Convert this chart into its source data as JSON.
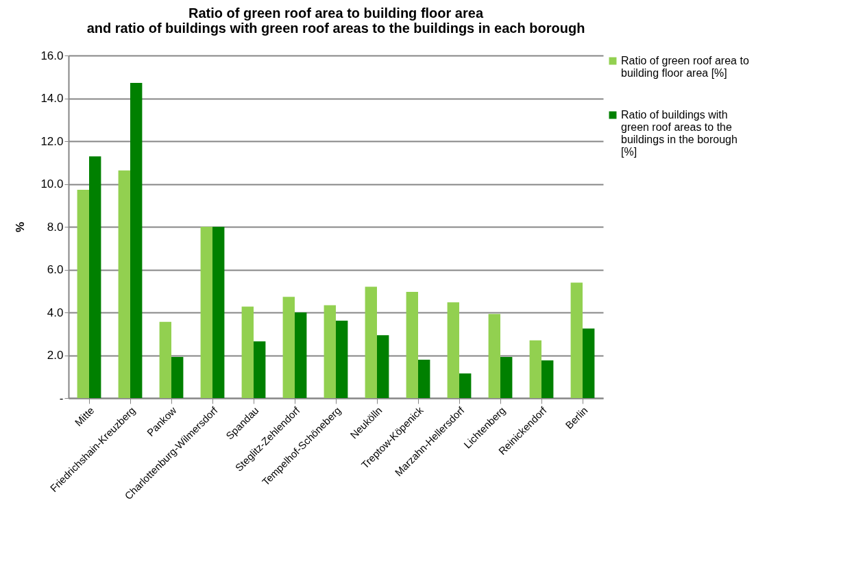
{
  "chart_data": {
    "type": "bar",
    "title": "Ratio of green roof area to building floor area\nand ratio of buildings with green roof areas to the buildings in each borough",
    "ylabel": "%",
    "categories": [
      "Mitte",
      "Friedrichshain-Kreuzberg",
      "Pankow",
      "Charlottenburg-Wilmersdorf",
      "Spandau",
      "Steglitz-Zehlendorf",
      "Tempelhof-Schöneberg",
      "Neukölln",
      "Treptow-Köpenick",
      "Marzahn-Hellersdorf",
      "Lichtenberg",
      "Reinickendorf",
      "Berlin"
    ],
    "series": [
      {
        "name": "Ratio of green roof area to building floor area [%]",
        "color": "#92d050",
        "values": [
          9.73,
          10.63,
          3.56,
          8.0,
          4.27,
          4.73,
          4.34,
          5.2,
          4.96,
          4.47,
          3.93,
          2.7,
          5.39
        ]
      },
      {
        "name": "Ratio of buildings with green roof areas to the buildings in the borough [%]",
        "color": "#008000",
        "values": [
          11.29,
          14.72,
          1.92,
          8.0,
          2.65,
          4.0,
          3.62,
          2.94,
          1.79,
          1.15,
          1.92,
          1.76,
          3.25
        ]
      }
    ],
    "ylim": [
      0,
      16
    ],
    "yticks": [
      {
        "value": 0,
        "label": "-"
      },
      {
        "value": 2,
        "label": "2.0"
      },
      {
        "value": 4,
        "label": "4.0"
      },
      {
        "value": 6,
        "label": "6.0"
      },
      {
        "value": 8,
        "label": "8.0"
      },
      {
        "value": 10,
        "label": "10.0"
      },
      {
        "value": 12,
        "label": "12.0"
      },
      {
        "value": 14,
        "label": "14.0"
      },
      {
        "value": 16,
        "label": "16.0"
      }
    ],
    "grid": "y",
    "legend": "right"
  }
}
